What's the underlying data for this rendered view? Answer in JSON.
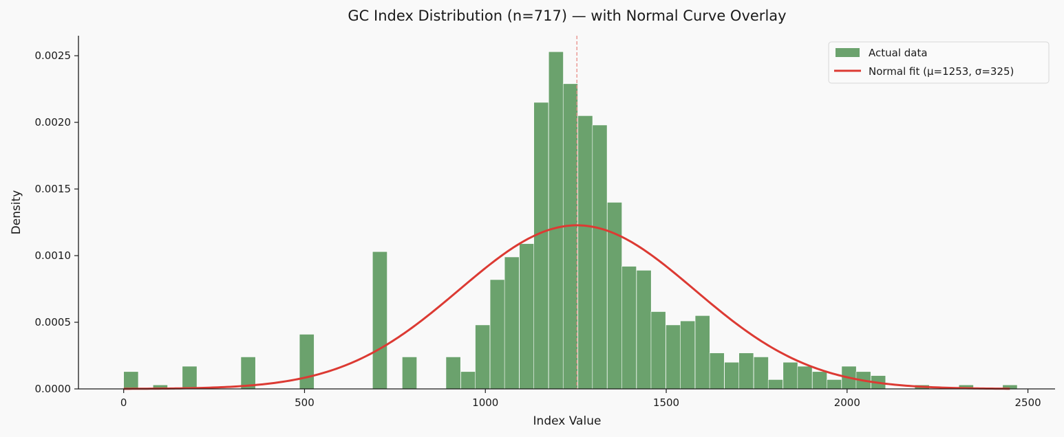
{
  "chart_data": {
    "type": "bar",
    "title": "GC Index Distribution (n=717) — with Normal Curve Overlay",
    "xlabel": "Index Value",
    "ylabel": "Density",
    "xlim": [
      -125,
      2575
    ],
    "ylim": [
      0,
      0.00265
    ],
    "x_ticks": [
      0,
      500,
      1000,
      1500,
      2000,
      2500
    ],
    "y_ticks": [
      0,
      0.0005,
      0.001,
      0.0015,
      0.002,
      0.0025
    ],
    "x_tick_labels": [
      "0",
      "500",
      "1000",
      "1500",
      "2000",
      "2500"
    ],
    "y_tick_labels": [
      "0.0000",
      "0.0005",
      "0.0010",
      "0.0015",
      "0.0020",
      "0.0025"
    ],
    "grid": false,
    "legend_position": "top-right",
    "bin_width": 40.5,
    "bins": [
      {
        "start": 0,
        "value": 0.00013
      },
      {
        "start": 81,
        "value": 3e-05
      },
      {
        "start": 162,
        "value": 0.00017
      },
      {
        "start": 324,
        "value": 0.00024
      },
      {
        "start": 486,
        "value": 0.00041
      },
      {
        "start": 688,
        "value": 0.00103
      },
      {
        "start": 770,
        "value": 0.00024
      },
      {
        "start": 891,
        "value": 0.00024
      },
      {
        "start": 932,
        "value": 0.00013
      },
      {
        "start": 972,
        "value": 0.00048
      },
      {
        "start": 1013,
        "value": 0.00082
      },
      {
        "start": 1053,
        "value": 0.00099
      },
      {
        "start": 1094,
        "value": 0.00109
      },
      {
        "start": 1134,
        "value": 0.00215
      },
      {
        "start": 1175,
        "value": 0.00253
      },
      {
        "start": 1215,
        "value": 0.00229
      },
      {
        "start": 1256,
        "value": 0.00205
      },
      {
        "start": 1296,
        "value": 0.00198
      },
      {
        "start": 1337,
        "value": 0.0014
      },
      {
        "start": 1377,
        "value": 0.00092
      },
      {
        "start": 1418,
        "value": 0.00089
      },
      {
        "start": 1458,
        "value": 0.00058
      },
      {
        "start": 1499,
        "value": 0.00048
      },
      {
        "start": 1539,
        "value": 0.00051
      },
      {
        "start": 1580,
        "value": 0.00055
      },
      {
        "start": 1620,
        "value": 0.00027
      },
      {
        "start": 1661,
        "value": 0.0002
      },
      {
        "start": 1701,
        "value": 0.00027
      },
      {
        "start": 1742,
        "value": 0.00024
      },
      {
        "start": 1782,
        "value": 7e-05
      },
      {
        "start": 1823,
        "value": 0.0002
      },
      {
        "start": 1863,
        "value": 0.00017
      },
      {
        "start": 1904,
        "value": 0.00013
      },
      {
        "start": 1944,
        "value": 7e-05
      },
      {
        "start": 1985,
        "value": 0.00017
      },
      {
        "start": 2025,
        "value": 0.00013
      },
      {
        "start": 2066,
        "value": 0.0001
      },
      {
        "start": 2187,
        "value": 3e-05
      },
      {
        "start": 2309,
        "value": 3e-05
      },
      {
        "start": 2430,
        "value": 3e-05
      }
    ],
    "normal_fit": {
      "mu": 1253,
      "sigma": 325,
      "x_range": [
        0,
        2450
      ]
    },
    "mean_line_x": 1253,
    "legend": [
      {
        "label": "Actual data",
        "type": "bar"
      },
      {
        "label": "Normal fit (μ=1253, σ=325)",
        "type": "line"
      }
    ],
    "colors": {
      "bar_fill": "#6ba26d",
      "bar_edge": "#ffffff",
      "curve": "#dc3a33",
      "mean_line": "#e88c86",
      "axis": "#1a1a1a",
      "background": "#f9f9f9"
    }
  }
}
